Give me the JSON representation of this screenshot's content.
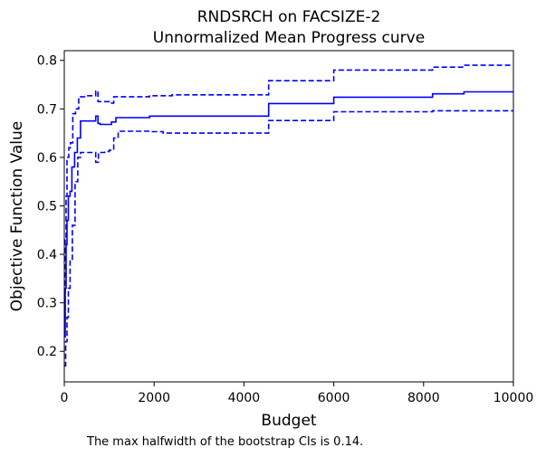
{
  "chart_data": {
    "type": "line",
    "title": "RNDSRCH on FACSIZE-2",
    "subtitle": "Unnormalized Mean Progress curve",
    "xlabel": "Budget",
    "ylabel": "Objective Function Value",
    "xlim": [
      0,
      10000
    ],
    "ylim": [
      0.137,
      0.82
    ],
    "xticks": [
      0,
      2000,
      4000,
      6000,
      8000,
      10000
    ],
    "yticks": [
      0.2,
      0.3,
      0.4,
      0.5,
      0.6,
      0.7,
      0.8
    ],
    "grid": false,
    "legend": "none",
    "note": "The max halfwidth of the bootstrap CIs is 0.14.",
    "series": [
      {
        "role": "mean",
        "style": "solid",
        "color": "#0000ff",
        "x": [
          0,
          20,
          40,
          60,
          90,
          130,
          170,
          230,
          290,
          360,
          700,
          750,
          800,
          1050,
          1150,
          1900,
          4550,
          6000,
          8200,
          8900,
          10000
        ],
        "y": [
          0.23,
          0.33,
          0.42,
          0.47,
          0.52,
          0.53,
          0.58,
          0.61,
          0.64,
          0.675,
          0.685,
          0.67,
          0.668,
          0.673,
          0.682,
          0.685,
          0.711,
          0.724,
          0.731,
          0.735,
          0.735
        ]
      },
      {
        "role": "upper-ci",
        "style": "dashed",
        "color": "#0000ff",
        "x": [
          0,
          20,
          40,
          60,
          100,
          140,
          190,
          250,
          320,
          500,
          700,
          750,
          1000,
          1100,
          1900,
          2400,
          4550,
          6000,
          8200,
          8900,
          10000
        ],
        "y": [
          0.27,
          0.43,
          0.52,
          0.6,
          0.62,
          0.63,
          0.69,
          0.7,
          0.725,
          0.727,
          0.737,
          0.715,
          0.712,
          0.725,
          0.727,
          0.729,
          0.758,
          0.78,
          0.786,
          0.79,
          0.79
        ]
      },
      {
        "role": "lower-ci",
        "style": "dashed",
        "color": "#0000ff",
        "x": [
          0,
          30,
          60,
          90,
          130,
          180,
          240,
          300,
          360,
          700,
          760,
          900,
          1000,
          1100,
          1200,
          1900,
          2200,
          4550,
          6000,
          8200,
          10000
        ],
        "y": [
          0.17,
          0.22,
          0.27,
          0.33,
          0.39,
          0.46,
          0.55,
          0.6,
          0.61,
          0.59,
          0.61,
          0.612,
          0.615,
          0.64,
          0.654,
          0.653,
          0.65,
          0.676,
          0.694,
          0.696,
          0.696
        ]
      }
    ]
  }
}
